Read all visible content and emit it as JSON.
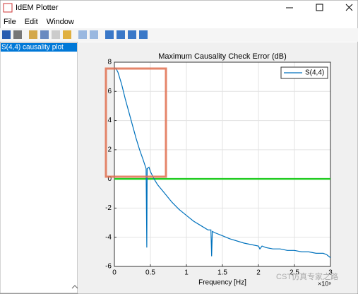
{
  "window": {
    "title": "IdEM Plotter",
    "menu": [
      "File",
      "Edit",
      "Window"
    ]
  },
  "sidebar": {
    "items": [
      "S(4,4) causality plot"
    ]
  },
  "watermark": "CST仿真专家之路",
  "chart_data": {
    "type": "line",
    "title": "Maximum Causality Check Error (dB)",
    "x_label": "Frequency [Hz]",
    "x_multiplier": "×10⁹",
    "x": [
      0,
      0.02,
      0.05,
      0.1,
      0.15,
      0.2,
      0.25,
      0.3,
      0.35,
      0.4,
      0.44,
      0.45,
      0.455,
      0.48,
      0.5,
      0.55,
      0.6,
      0.7,
      0.8,
      0.9,
      1.0,
      1.1,
      1.2,
      1.3,
      1.34,
      1.35,
      1.36,
      1.4,
      1.5,
      1.6,
      1.8,
      2.0,
      2.02,
      2.05,
      2.1,
      2.2,
      2.3,
      2.4,
      2.5,
      2.6,
      2.7,
      2.8,
      2.9,
      2.95,
      3.0
    ],
    "series": [
      {
        "name": "S(4,4)",
        "color": "#0072bd",
        "values": [
          7.6,
          7.6,
          7.3,
          6.5,
          5.5,
          4.6,
          3.7,
          2.8,
          2.0,
          1.3,
          0.7,
          -4.7,
          0.7,
          0.8,
          0.5,
          0,
          -0.4,
          -1.0,
          -1.6,
          -2.1,
          -2.5,
          -2.9,
          -3.2,
          -3.5,
          -3.5,
          -5.3,
          -3.6,
          -3.7,
          -3.9,
          -4.1,
          -4.4,
          -4.6,
          -4.8,
          -4.6,
          -4.7,
          -4.8,
          -4.8,
          -4.9,
          -4.9,
          -5.0,
          -5.0,
          -5.1,
          -5.1,
          -5.2,
          -5.4
        ]
      }
    ],
    "hline": {
      "y": 0,
      "color": "#22cc22"
    },
    "xlim": [
      0,
      3
    ],
    "xticks": [
      0,
      0.5,
      1,
      1.5,
      2,
      2.5,
      3
    ],
    "ylim": [
      -6,
      8
    ],
    "yticks": [
      -6,
      -4,
      -2,
      0,
      2,
      4,
      6,
      8
    ],
    "grid": true,
    "legend": "northeast"
  }
}
